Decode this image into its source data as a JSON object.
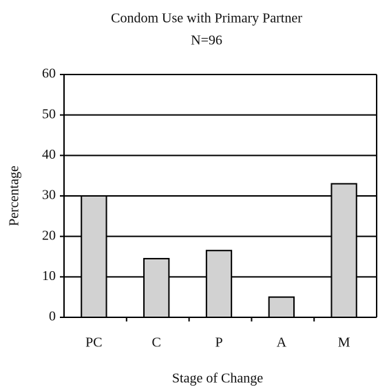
{
  "chart_data": {
    "type": "bar",
    "title": "Condom Use with Primary Partner",
    "subtitle": "N=96",
    "x_label": "Stage of Change",
    "y_label": "Percentage",
    "categories": [
      "PC",
      "C",
      "P",
      "A",
      "M"
    ],
    "values": [
      30,
      14.5,
      16.5,
      5,
      33
    ],
    "color": "#d2d2d2",
    "ylim": [
      0,
      60
    ],
    "yticks": [
      0,
      10,
      20,
      30,
      40,
      50,
      60
    ],
    "grid": true
  }
}
